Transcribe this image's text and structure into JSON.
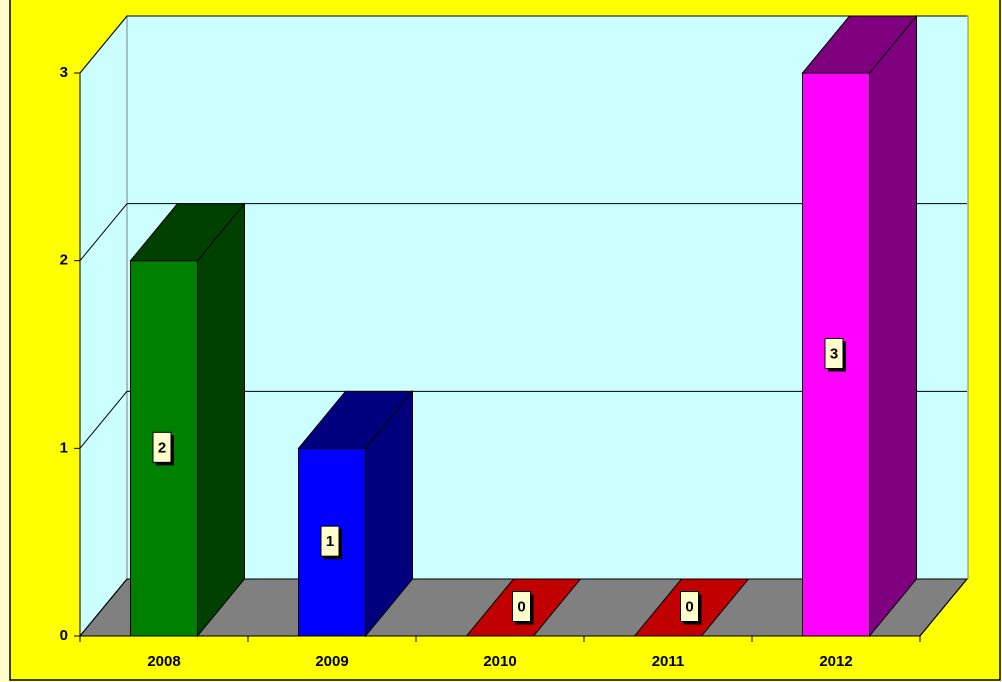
{
  "chart_data": {
    "type": "bar3d",
    "categories": [
      "2008",
      "2009",
      "2010",
      "2011",
      "2012"
    ],
    "values": [
      2,
      1,
      0,
      0,
      3
    ],
    "colors": [
      "#008000",
      "#0000ff",
      "#c00000",
      "#c00000",
      "#ff00ff"
    ],
    "ylim": [
      0,
      3
    ],
    "yticks": [
      0,
      1,
      2,
      3
    ],
    "grid": true
  }
}
